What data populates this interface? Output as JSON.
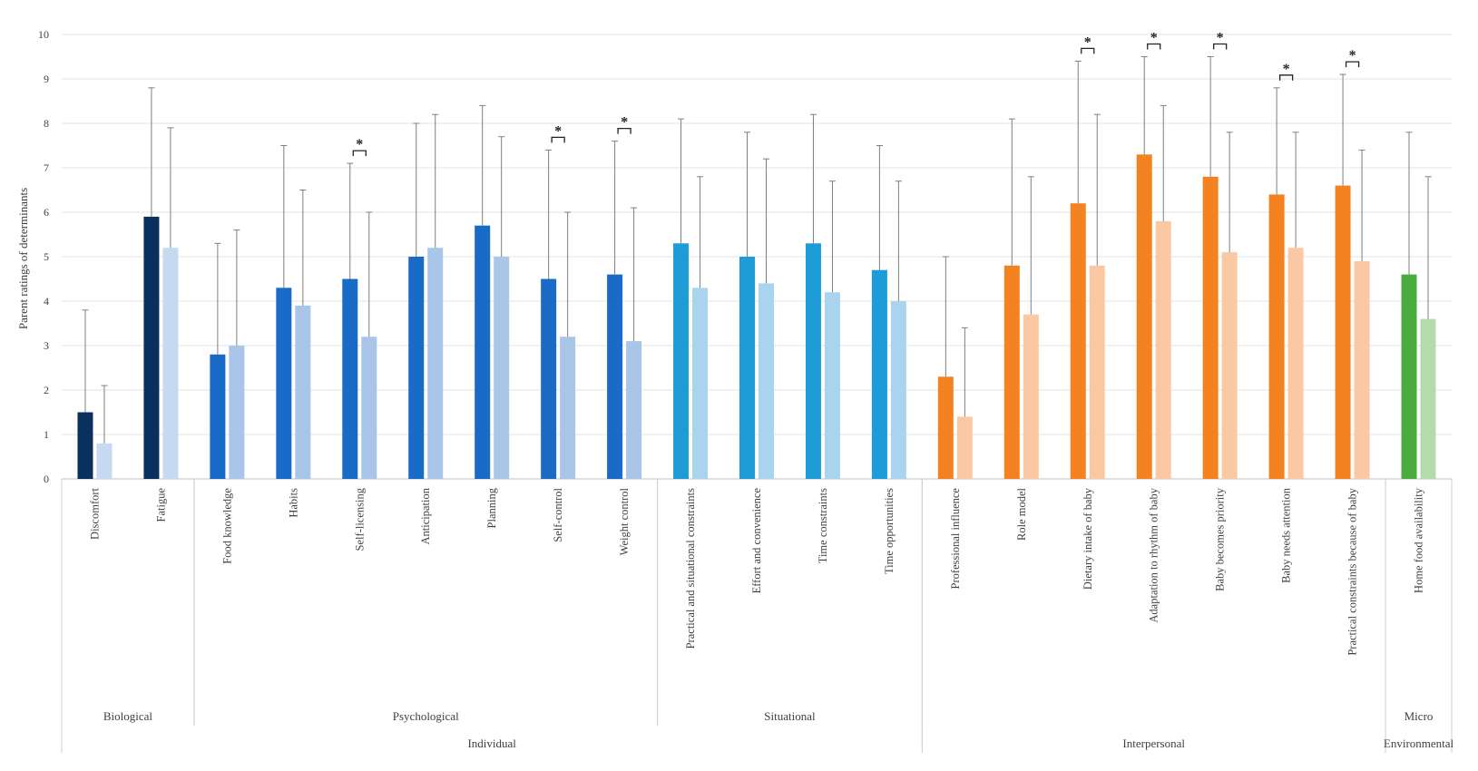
{
  "chart_data": {
    "type": "bar",
    "ylabel": "Parent ratings of determinants",
    "ylim": [
      0,
      10
    ],
    "yticks": [
      0,
      1,
      2,
      3,
      4,
      5,
      6,
      7,
      8,
      9,
      10
    ],
    "grid": true,
    "series_note": "Two bars per determinant (dark = first group, light = second group); whiskers are error bars",
    "categories": [
      {
        "label": "Discomfort",
        "v1": 1.5,
        "e1": 3.8,
        "v2": 0.8,
        "e2": 2.1,
        "dark": "#0a305e",
        "light": "#c6d9f1",
        "sig": false
      },
      {
        "label": "Fatigue",
        "v1": 5.9,
        "e1": 8.8,
        "v2": 5.2,
        "e2": 7.9,
        "dark": "#0a305e",
        "light": "#c6d9f1",
        "sig": false
      },
      {
        "label": "Food knowledge",
        "v1": 2.8,
        "e1": 5.3,
        "v2": 3.0,
        "e2": 5.6,
        "dark": "#1a6ac8",
        "light": "#a9c5e8",
        "sig": false
      },
      {
        "label": "Habits",
        "v1": 4.3,
        "e1": 7.5,
        "v2": 3.9,
        "e2": 6.5,
        "dark": "#1a6ac8",
        "light": "#a9c5e8",
        "sig": false
      },
      {
        "label": "Self-licensing",
        "v1": 4.5,
        "e1": 7.1,
        "v2": 3.2,
        "e2": 6.0,
        "dark": "#1a6ac8",
        "light": "#a9c5e8",
        "sig": true
      },
      {
        "label": "Anticipation",
        "v1": 5.0,
        "e1": 8.0,
        "v2": 5.2,
        "e2": 8.2,
        "dark": "#1a6ac8",
        "light": "#a9c5e8",
        "sig": false
      },
      {
        "label": "Planning",
        "v1": 5.7,
        "e1": 8.4,
        "v2": 5.0,
        "e2": 7.7,
        "dark": "#1a6ac8",
        "light": "#a9c5e8",
        "sig": false
      },
      {
        "label": "Self-control",
        "v1": 4.5,
        "e1": 7.4,
        "v2": 3.2,
        "e2": 6.0,
        "dark": "#1a6ac8",
        "light": "#a9c5e8",
        "sig": true
      },
      {
        "label": "Weight control",
        "v1": 4.6,
        "e1": 7.6,
        "v2": 3.1,
        "e2": 6.1,
        "dark": "#1a6ac8",
        "light": "#a9c5e8",
        "sig": true
      },
      {
        "label": "Practical and situational constraints",
        "v1": 5.3,
        "e1": 8.1,
        "v2": 4.3,
        "e2": 6.8,
        "dark": "#1e9cd7",
        "light": "#aad4ee",
        "sig": false
      },
      {
        "label": "Effort and convenience",
        "v1": 5.0,
        "e1": 7.8,
        "v2": 4.4,
        "e2": 7.2,
        "dark": "#1e9cd7",
        "light": "#aad4ee",
        "sig": false
      },
      {
        "label": "Time constraints",
        "v1": 5.3,
        "e1": 8.2,
        "v2": 4.2,
        "e2": 6.7,
        "dark": "#1e9cd7",
        "light": "#aad4ee",
        "sig": false
      },
      {
        "label": "Time opportunities",
        "v1": 4.7,
        "e1": 7.5,
        "v2": 4.0,
        "e2": 6.7,
        "dark": "#1e9cd7",
        "light": "#aad4ee",
        "sig": false
      },
      {
        "label": "Professional influence",
        "v1": 2.3,
        "e1": 5.0,
        "v2": 1.4,
        "e2": 3.4,
        "dark": "#f58220",
        "light": "#fbc8a4",
        "sig": false
      },
      {
        "label": "Role model",
        "v1": 4.8,
        "e1": 8.1,
        "v2": 3.7,
        "e2": 6.8,
        "dark": "#f58220",
        "light": "#fbc8a4",
        "sig": false
      },
      {
        "label": "Dietary intake of baby",
        "v1": 6.2,
        "e1": 9.4,
        "v2": 4.8,
        "e2": 8.2,
        "dark": "#f58220",
        "light": "#fbc8a4",
        "sig": true
      },
      {
        "label": "Adaptation to rhythm of baby",
        "v1": 7.3,
        "e1": 9.5,
        "v2": 5.8,
        "e2": 8.4,
        "dark": "#f58220",
        "light": "#fbc8a4",
        "sig": true
      },
      {
        "label": "Baby becomes priority",
        "v1": 6.8,
        "e1": 9.5,
        "v2": 5.1,
        "e2": 7.8,
        "dark": "#f58220",
        "light": "#fbc8a4",
        "sig": true
      },
      {
        "label": "Baby needs attention",
        "v1": 6.4,
        "e1": 8.8,
        "v2": 5.2,
        "e2": 7.8,
        "dark": "#f58220",
        "light": "#fbc8a4",
        "sig": true
      },
      {
        "label": "Practical constraints because of baby",
        "v1": 6.6,
        "e1": 9.1,
        "v2": 4.9,
        "e2": 7.4,
        "dark": "#f58220",
        "light": "#fbc8a4",
        "sig": true
      },
      {
        "label": "Home food availability",
        "v1": 4.6,
        "e1": 7.8,
        "v2": 3.6,
        "e2": 6.8,
        "dark": "#4aac3c",
        "light": "#b4dcaa",
        "sig": false
      }
    ],
    "sig_marker": "*",
    "groups_level1": [
      {
        "label": "Biological",
        "from": 0,
        "to": 1
      },
      {
        "label": "Psychological",
        "from": 2,
        "to": 8
      },
      {
        "label": "Situational",
        "from": 9,
        "to": 12
      },
      {
        "label": "Micro",
        "from": 20,
        "to": 20
      }
    ],
    "groups_level2": [
      {
        "label": "Individual",
        "from": 0,
        "to": 12
      },
      {
        "label": "Interpersonal",
        "from": 13,
        "to": 19
      },
      {
        "label": "Environmental",
        "from": 20,
        "to": 20
      }
    ]
  }
}
